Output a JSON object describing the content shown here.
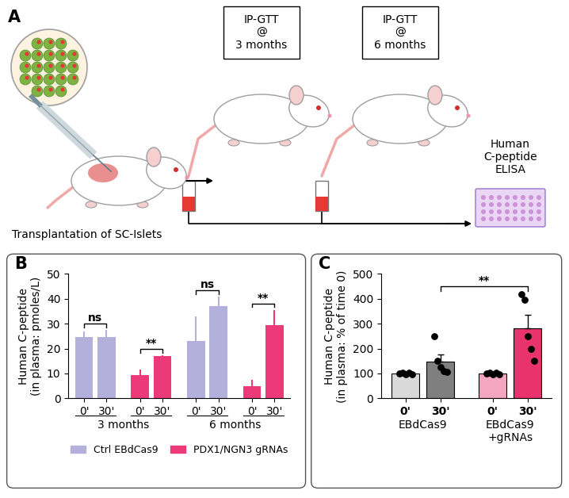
{
  "diagram": {
    "panel": "A",
    "transplant_caption": "Transplantation of SC-Islets",
    "tests": [
      "IP-GTT\n@\n3 months",
      "IP-GTT\n@\n6 months"
    ],
    "assay_caption": "Human\nC-peptide\nELISA"
  },
  "chart_data": [
    {
      "panel": "B",
      "type": "bar",
      "categories": [
        "0'",
        "30'",
        "0'",
        "30'",
        "0'",
        "30'",
        "0'",
        "30'"
      ],
      "groups": [
        "3 months",
        "6 months"
      ],
      "pair_annotations": [
        "ns",
        "**",
        "ns",
        "**"
      ],
      "y_label": "Human C-peptide\n(in plasma: pmoles/L)",
      "ylim": [
        0,
        50
      ],
      "yticks": [
        0,
        10,
        20,
        30,
        40,
        50
      ],
      "legend": "upper center",
      "series": [
        {
          "name": "Ctrl EBdCas9",
          "color": "#b3b0dc",
          "values": [
            24.5,
            24.5,
            null,
            null,
            23,
            37,
            null,
            null
          ],
          "errors": [
            2.5,
            3,
            null,
            null,
            10,
            4,
            null,
            null
          ]
        },
        {
          "name": "PDX1/NGN3 gRNAs",
          "color": "#ec3a78",
          "values": [
            null,
            null,
            9.5,
            17,
            null,
            null,
            5,
            29.3
          ],
          "errors": [
            null,
            null,
            2,
            0.3,
            null,
            null,
            2.5,
            6.3
          ]
        }
      ]
    },
    {
      "panel": "C",
      "type": "bar",
      "categories": [
        "0'",
        "30'",
        "0'",
        "30'"
      ],
      "groups": [
        "EBdCas9",
        "EBdCas9\n+gRNAs"
      ],
      "values": [
        100,
        148,
        100,
        283
      ],
      "errors": [
        4,
        28,
        4,
        52
      ],
      "colors": [
        "#d9d9d9",
        "#7f7f7f",
        "#f4a6c0",
        "#e8336f"
      ],
      "points": [
        [
          100,
          103,
          98,
          104,
          97
        ],
        [
          250,
          150,
          125,
          110,
          105
        ],
        [
          100,
          102,
          97,
          103,
          98
        ],
        [
          420,
          395,
          250,
          200,
          150
        ]
      ],
      "significance": [
        {
          "text": "**",
          "pair": [
            1,
            3
          ]
        }
      ],
      "y_label": "Human C-peptide\n(in plasma: % of time 0)",
      "ylim": [
        0,
        500
      ],
      "yticks": [
        0,
        100,
        200,
        300,
        400,
        500
      ]
    }
  ]
}
